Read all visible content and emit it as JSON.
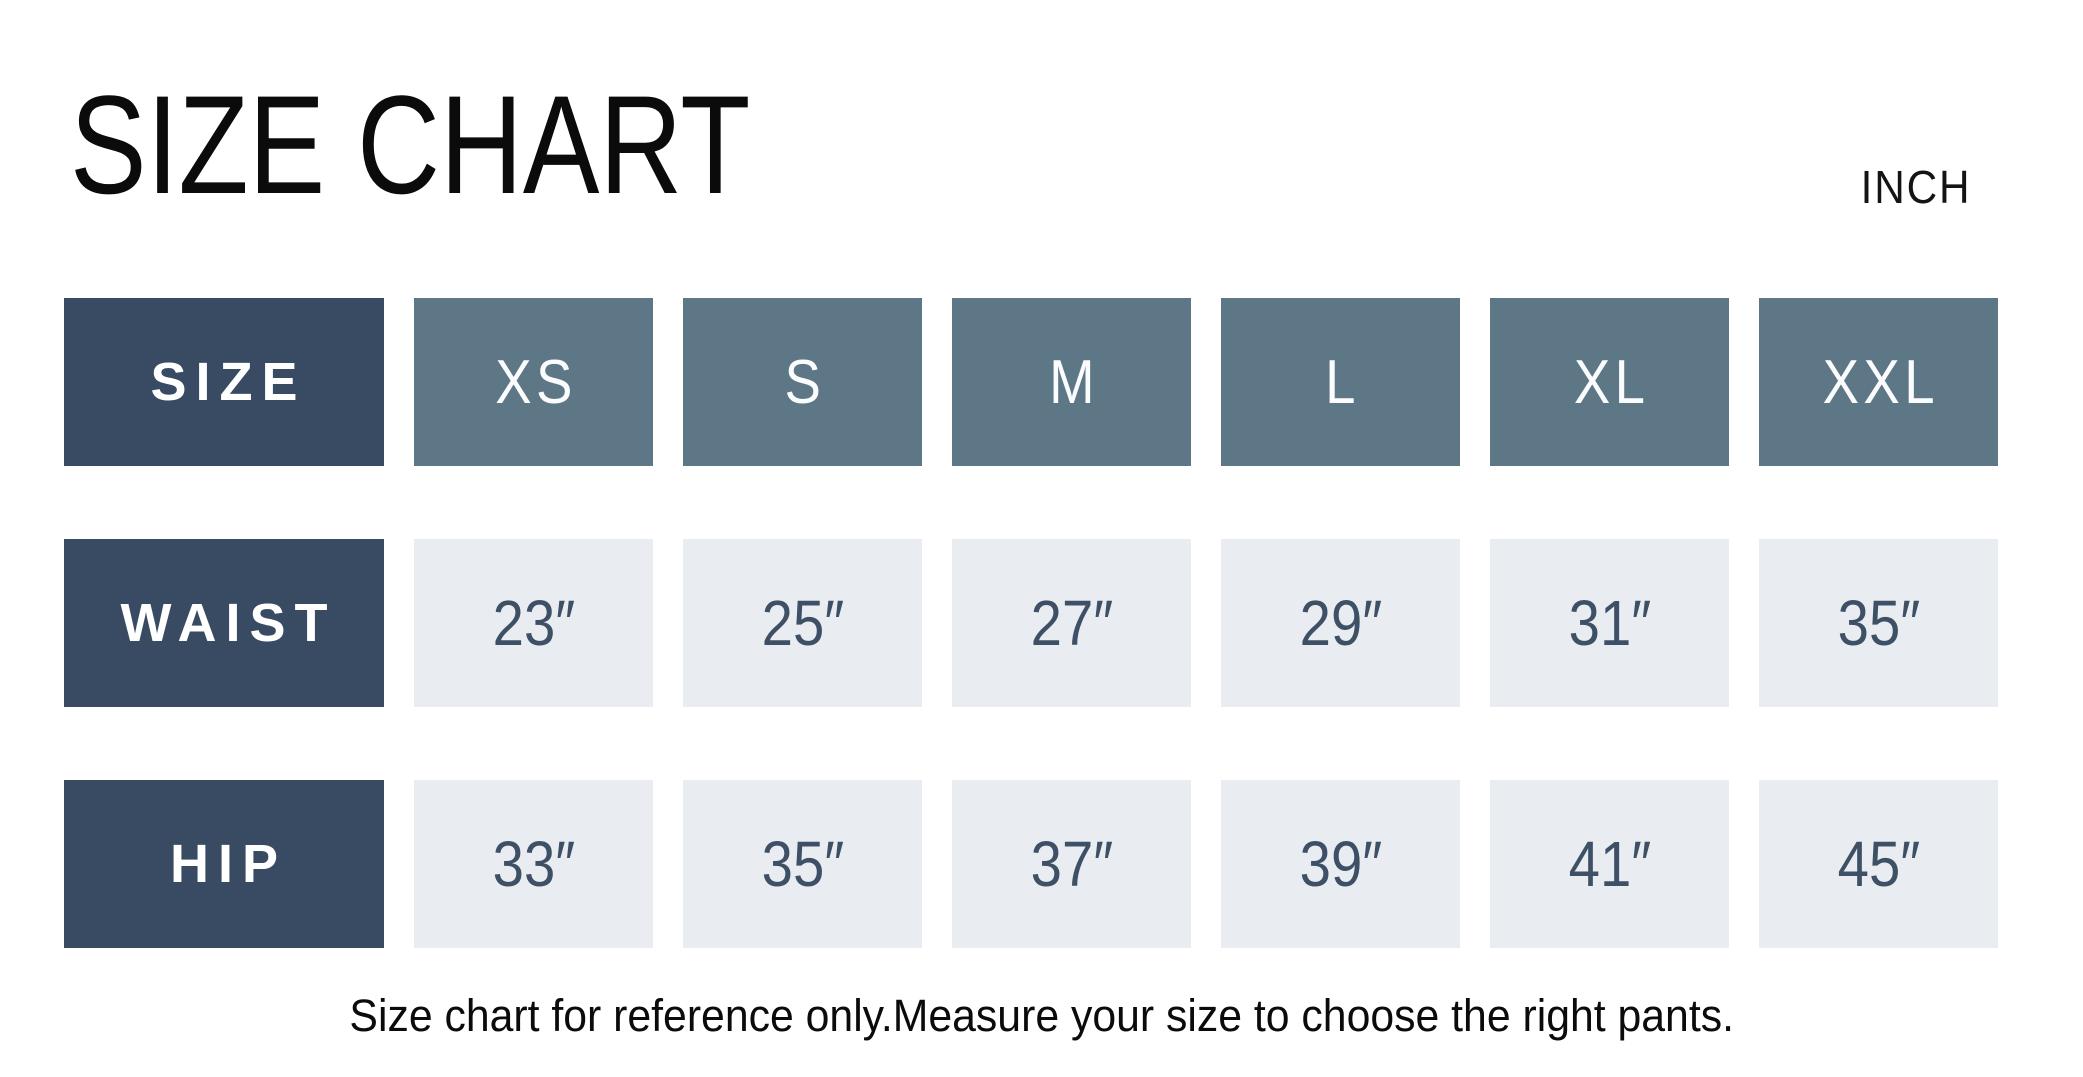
{
  "title": "SIZE CHART",
  "unit_label": "INCH",
  "note": "Size chart for reference only.Measure your size to choose the right pants.",
  "colors": {
    "label_cell_navy": "#394a63",
    "size_header_slate": "#5e7787",
    "value_cell_light": "#e9edf2",
    "value_text": "#3e5066",
    "text_black": "#0b0b0b",
    "background": "#ffffff"
  },
  "chart_data": {
    "type": "table",
    "title": "SIZE CHART",
    "unit": "INCH",
    "columns": [
      "SIZE",
      "XS",
      "S",
      "M",
      "L",
      "XL",
      "XXL"
    ],
    "rows": [
      {
        "label": "WAIST",
        "values": [
          "23″",
          "25″",
          "27″",
          "29″",
          "31″",
          "35″"
        ]
      },
      {
        "label": "HIP",
        "values": [
          "33″",
          "35″",
          "37″",
          "39″",
          "41″",
          "45″"
        ]
      }
    ],
    "footnote": "Size chart for reference only.Measure your size to choose the right pants."
  }
}
